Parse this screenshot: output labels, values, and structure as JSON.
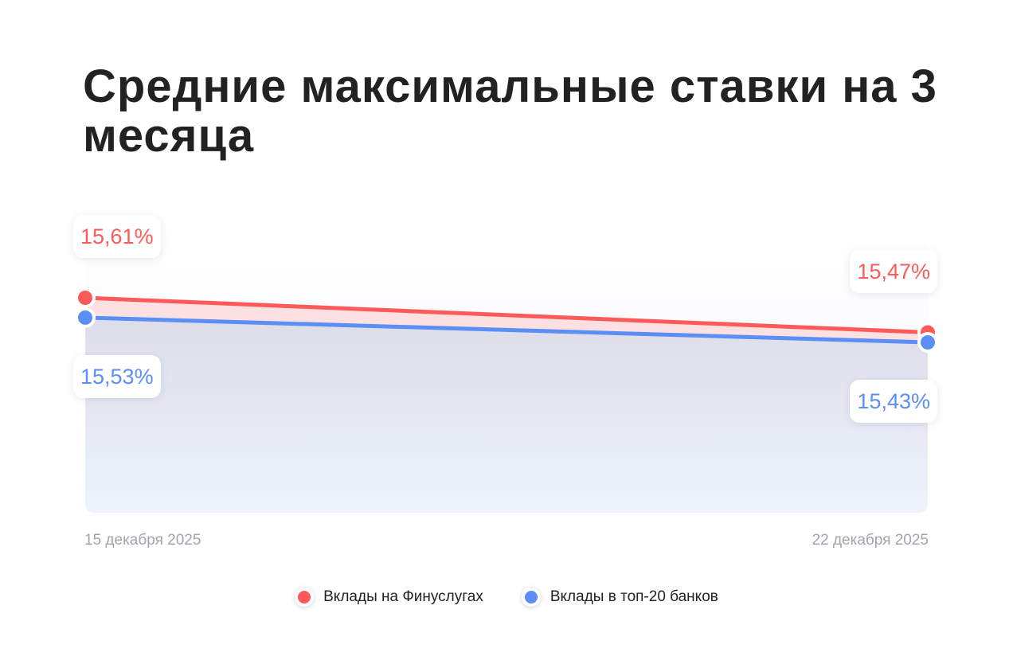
{
  "chart_data": {
    "type": "area",
    "title": "Средние максимальные ставки на 3 месяца",
    "categories": [
      "15 декабря 2025",
      "22 декабря 2025"
    ],
    "series": [
      {
        "name": "Вклады на Финуслугах",
        "values": [
          15.61,
          15.47
        ],
        "labels": [
          "15,61%",
          "15,47%"
        ],
        "color": "#ff5a5a"
      },
      {
        "name": "Вклады в топ-20 банков",
        "values": [
          15.53,
          15.43
        ],
        "labels": [
          "15,53%",
          "15,43%"
        ],
        "color": "#5b8ff5"
      }
    ],
    "legend": "bottom",
    "grid": false
  }
}
